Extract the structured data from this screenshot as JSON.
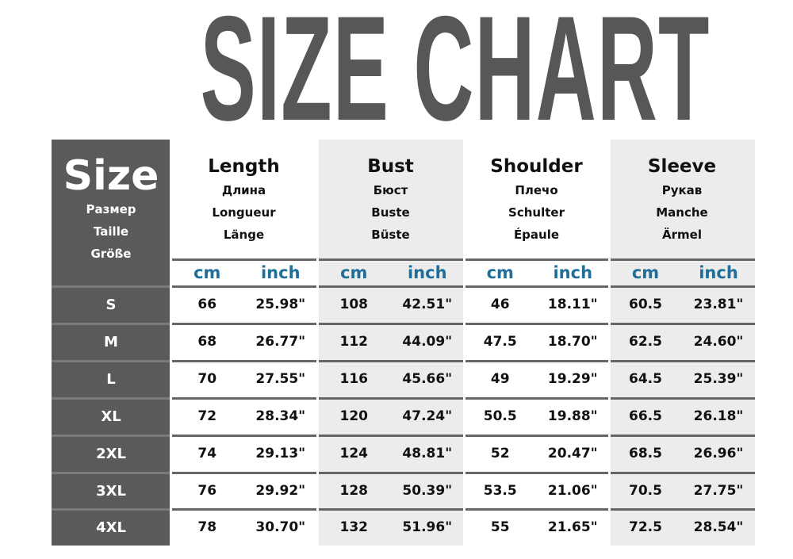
{
  "title": "SIZE CHART",
  "size_header": {
    "label": "Size",
    "translations": [
      "Размер",
      "Taille",
      "Größe"
    ]
  },
  "groups": [
    {
      "name": "Length",
      "translations": [
        "Длина",
        "Longueur",
        "Länge"
      ],
      "cm_label": "cm",
      "inch_label": "inch"
    },
    {
      "name": "Bust",
      "translations": [
        "Бюст",
        "Buste",
        "Büste"
      ],
      "cm_label": "cm",
      "inch_label": "inch"
    },
    {
      "name": "Shoulder",
      "translations": [
        "Плечо",
        "Schulter",
        "Épaule"
      ],
      "cm_label": "cm",
      "inch_label": "inch"
    },
    {
      "name": "Sleeve",
      "translations": [
        "Рукав",
        "Manche",
        "Ärmel"
      ],
      "cm_label": "cm",
      "inch_label": "inch"
    }
  ],
  "rows": [
    {
      "size": "S",
      "values": [
        "66",
        "25.98\"",
        "108",
        "42.51\"",
        "46",
        "18.11\"",
        "60.5",
        "23.81\""
      ]
    },
    {
      "size": "M",
      "values": [
        "68",
        "26.77\"",
        "112",
        "44.09\"",
        "47.5",
        "18.70\"",
        "62.5",
        "24.60\""
      ]
    },
    {
      "size": "L",
      "values": [
        "70",
        "27.55\"",
        "116",
        "45.66\"",
        "49",
        "19.29\"",
        "64.5",
        "25.39\""
      ]
    },
    {
      "size": "XL",
      "values": [
        "72",
        "28.34\"",
        "120",
        "47.24\"",
        "50.5",
        "19.88\"",
        "66.5",
        "26.18\""
      ]
    },
    {
      "size": "2XL",
      "values": [
        "74",
        "29.13\"",
        "124",
        "48.81\"",
        "52",
        "20.47\"",
        "68.5",
        "26.96\""
      ]
    },
    {
      "size": "3XL",
      "values": [
        "76",
        "29.92\"",
        "128",
        "50.39\"",
        "53.5",
        "21.06\"",
        "70.5",
        "27.75\""
      ]
    },
    {
      "size": "4XL",
      "values": [
        "78",
        "30.70\"",
        "132",
        "51.96\"",
        "55",
        "21.65\"",
        "72.5",
        "28.54\""
      ]
    }
  ],
  "colors": {
    "title": "#575757",
    "size_column": "#5a5a5a",
    "unit_label": "#1f6f9a",
    "alt_group": "#ececec"
  }
}
